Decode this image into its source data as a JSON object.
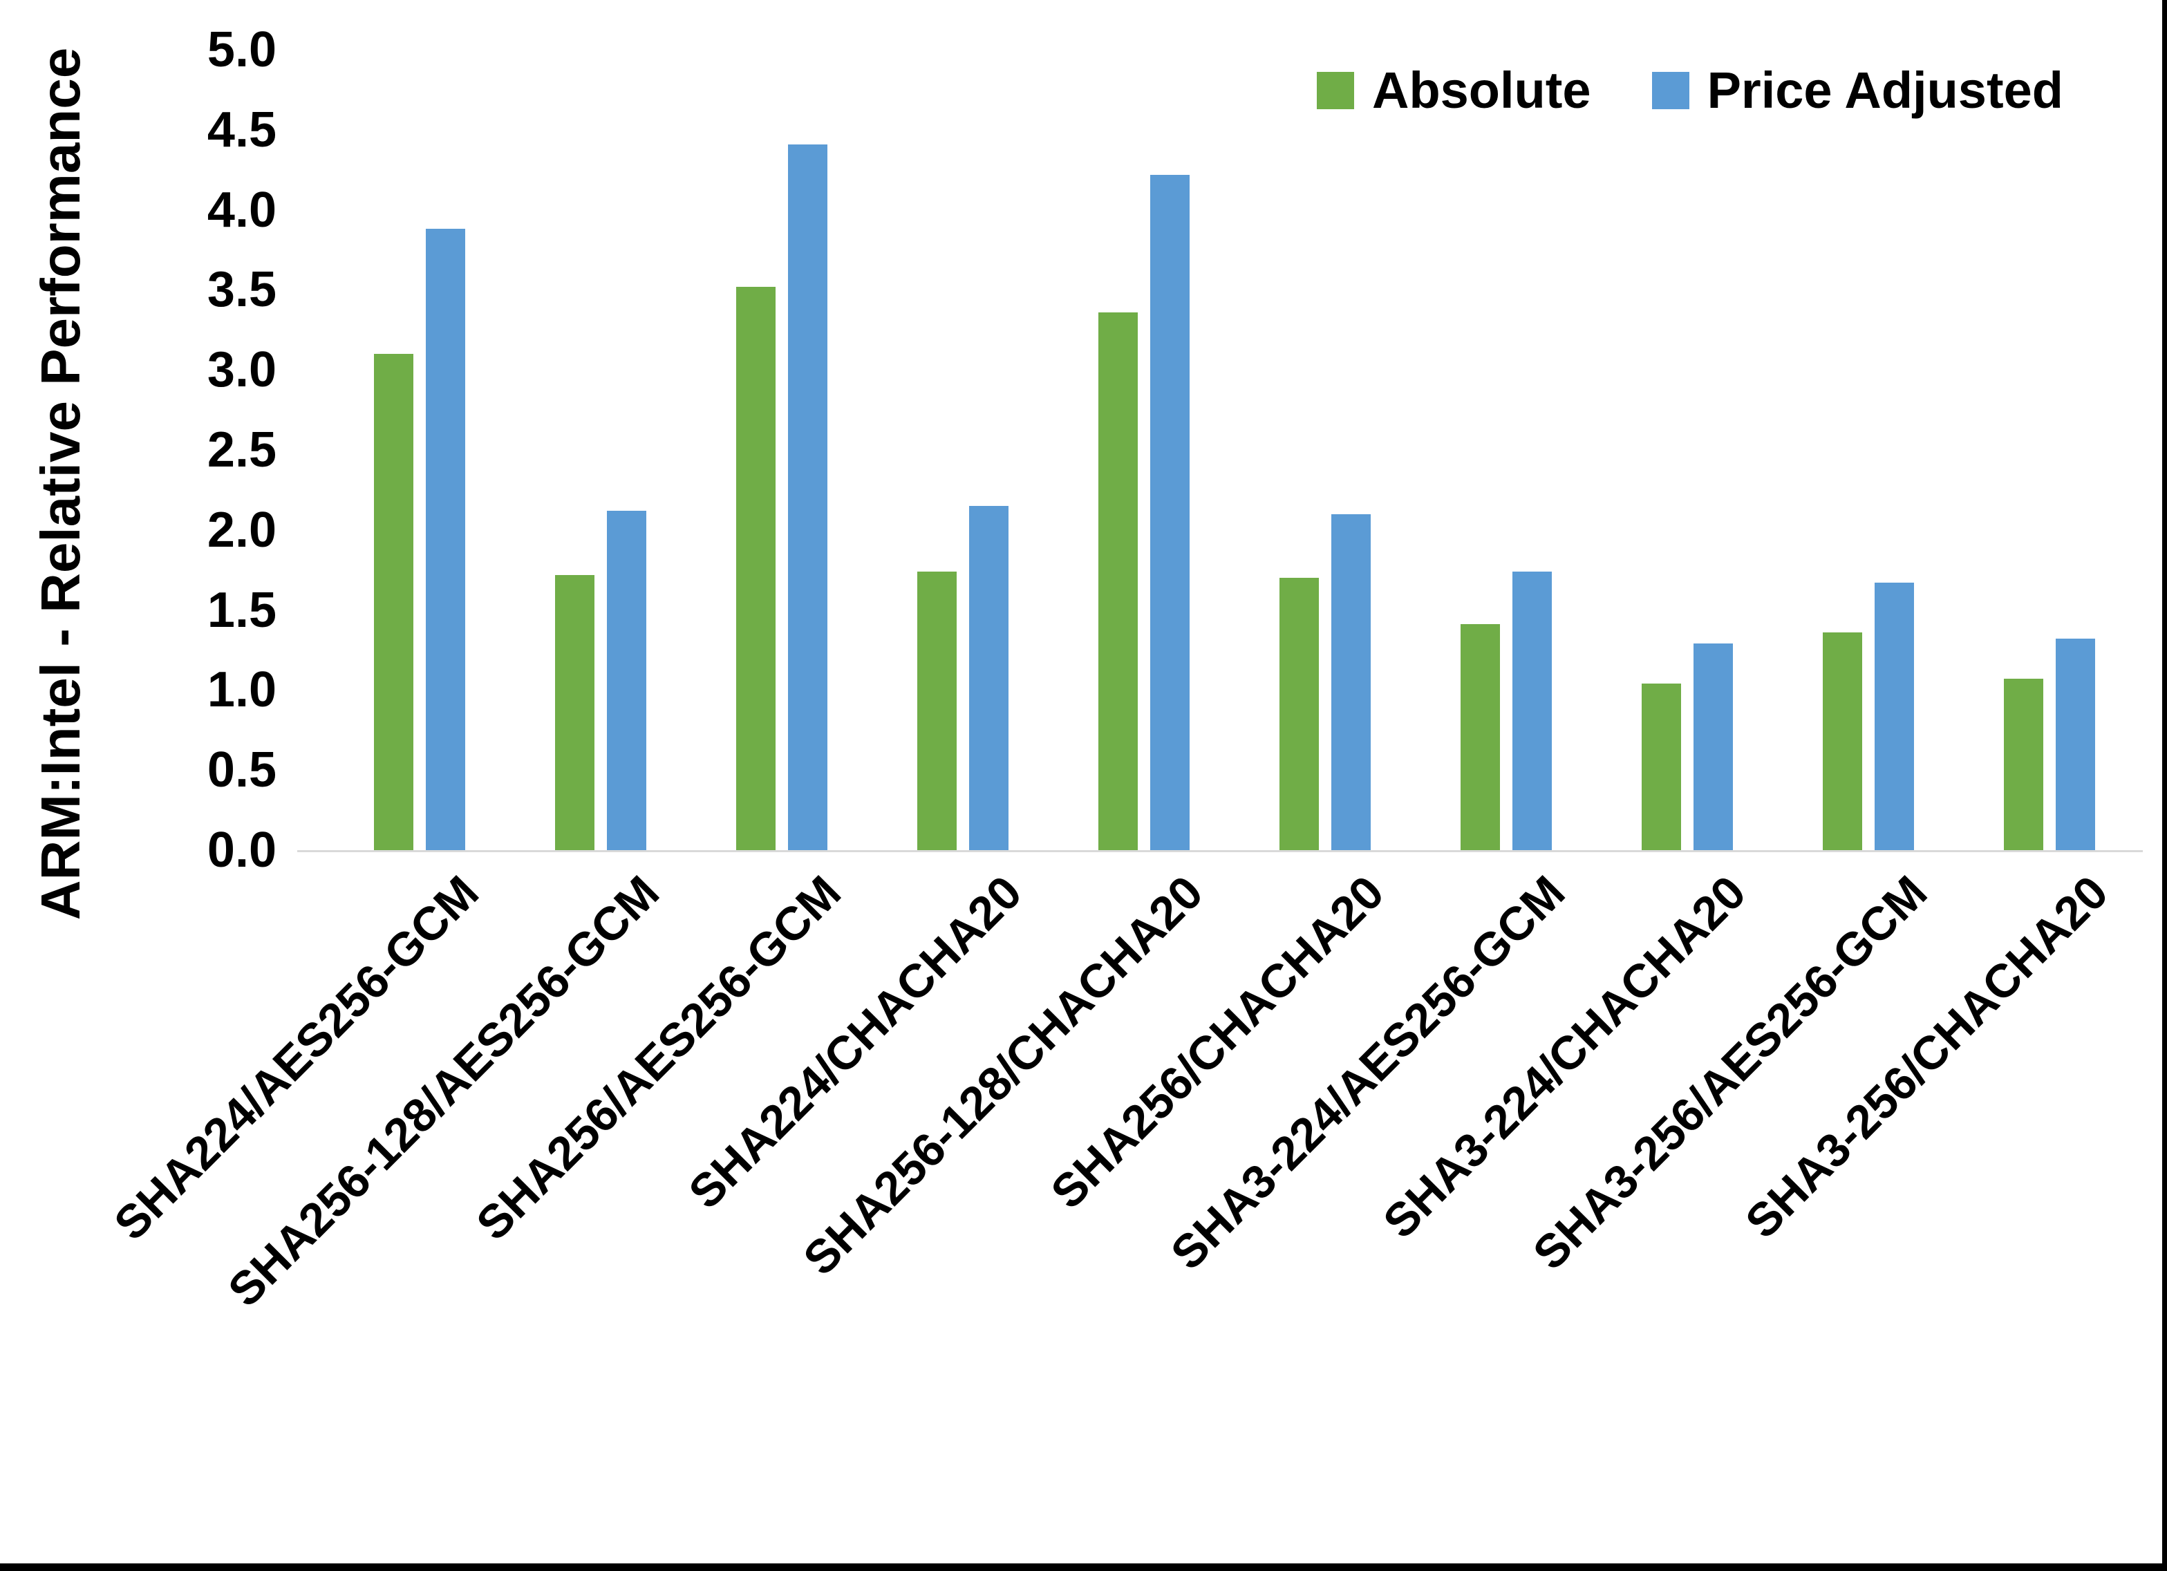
{
  "chart_data": {
    "type": "bar",
    "title": "",
    "ylabel": "ARM:Intel - Relative Performance",
    "xlabel": "",
    "ylim": [
      0,
      5
    ],
    "ytick_step": 0.5,
    "yticks": [
      "5.0",
      "4.5",
      "4.0",
      "3.5",
      "3.0",
      "2.5",
      "2.0",
      "1.5",
      "1.0",
      "0.5",
      "0.0"
    ],
    "grid": false,
    "legend_position": "top-right",
    "categories": [
      "SHA224/AES256-GCM",
      "SHA256-128/AES256-GCM",
      "SHA256/AES256-GCM",
      "SHA224/CHACHA20",
      "SHA256-128/CHACHA20",
      "SHA256/CHACHA20",
      "SHA3-224/AES256-GCM",
      "SHA3-224/CHACHA20",
      "SHA3-256/AES256-GCM",
      "SHA3-256/CHACHA20"
    ],
    "series": [
      {
        "name": "Absolute",
        "color": "#70AD47",
        "values": [
          3.1,
          1.72,
          3.52,
          1.74,
          3.36,
          1.7,
          1.41,
          1.04,
          1.36,
          1.07
        ]
      },
      {
        "name": "Price Adjusted",
        "color": "#5B9BD5",
        "values": [
          3.88,
          2.12,
          4.41,
          2.15,
          4.22,
          2.1,
          1.74,
          1.29,
          1.67,
          1.32
        ]
      }
    ],
    "axis_line_color": "#d9d9d9",
    "text_color": "#000000"
  }
}
